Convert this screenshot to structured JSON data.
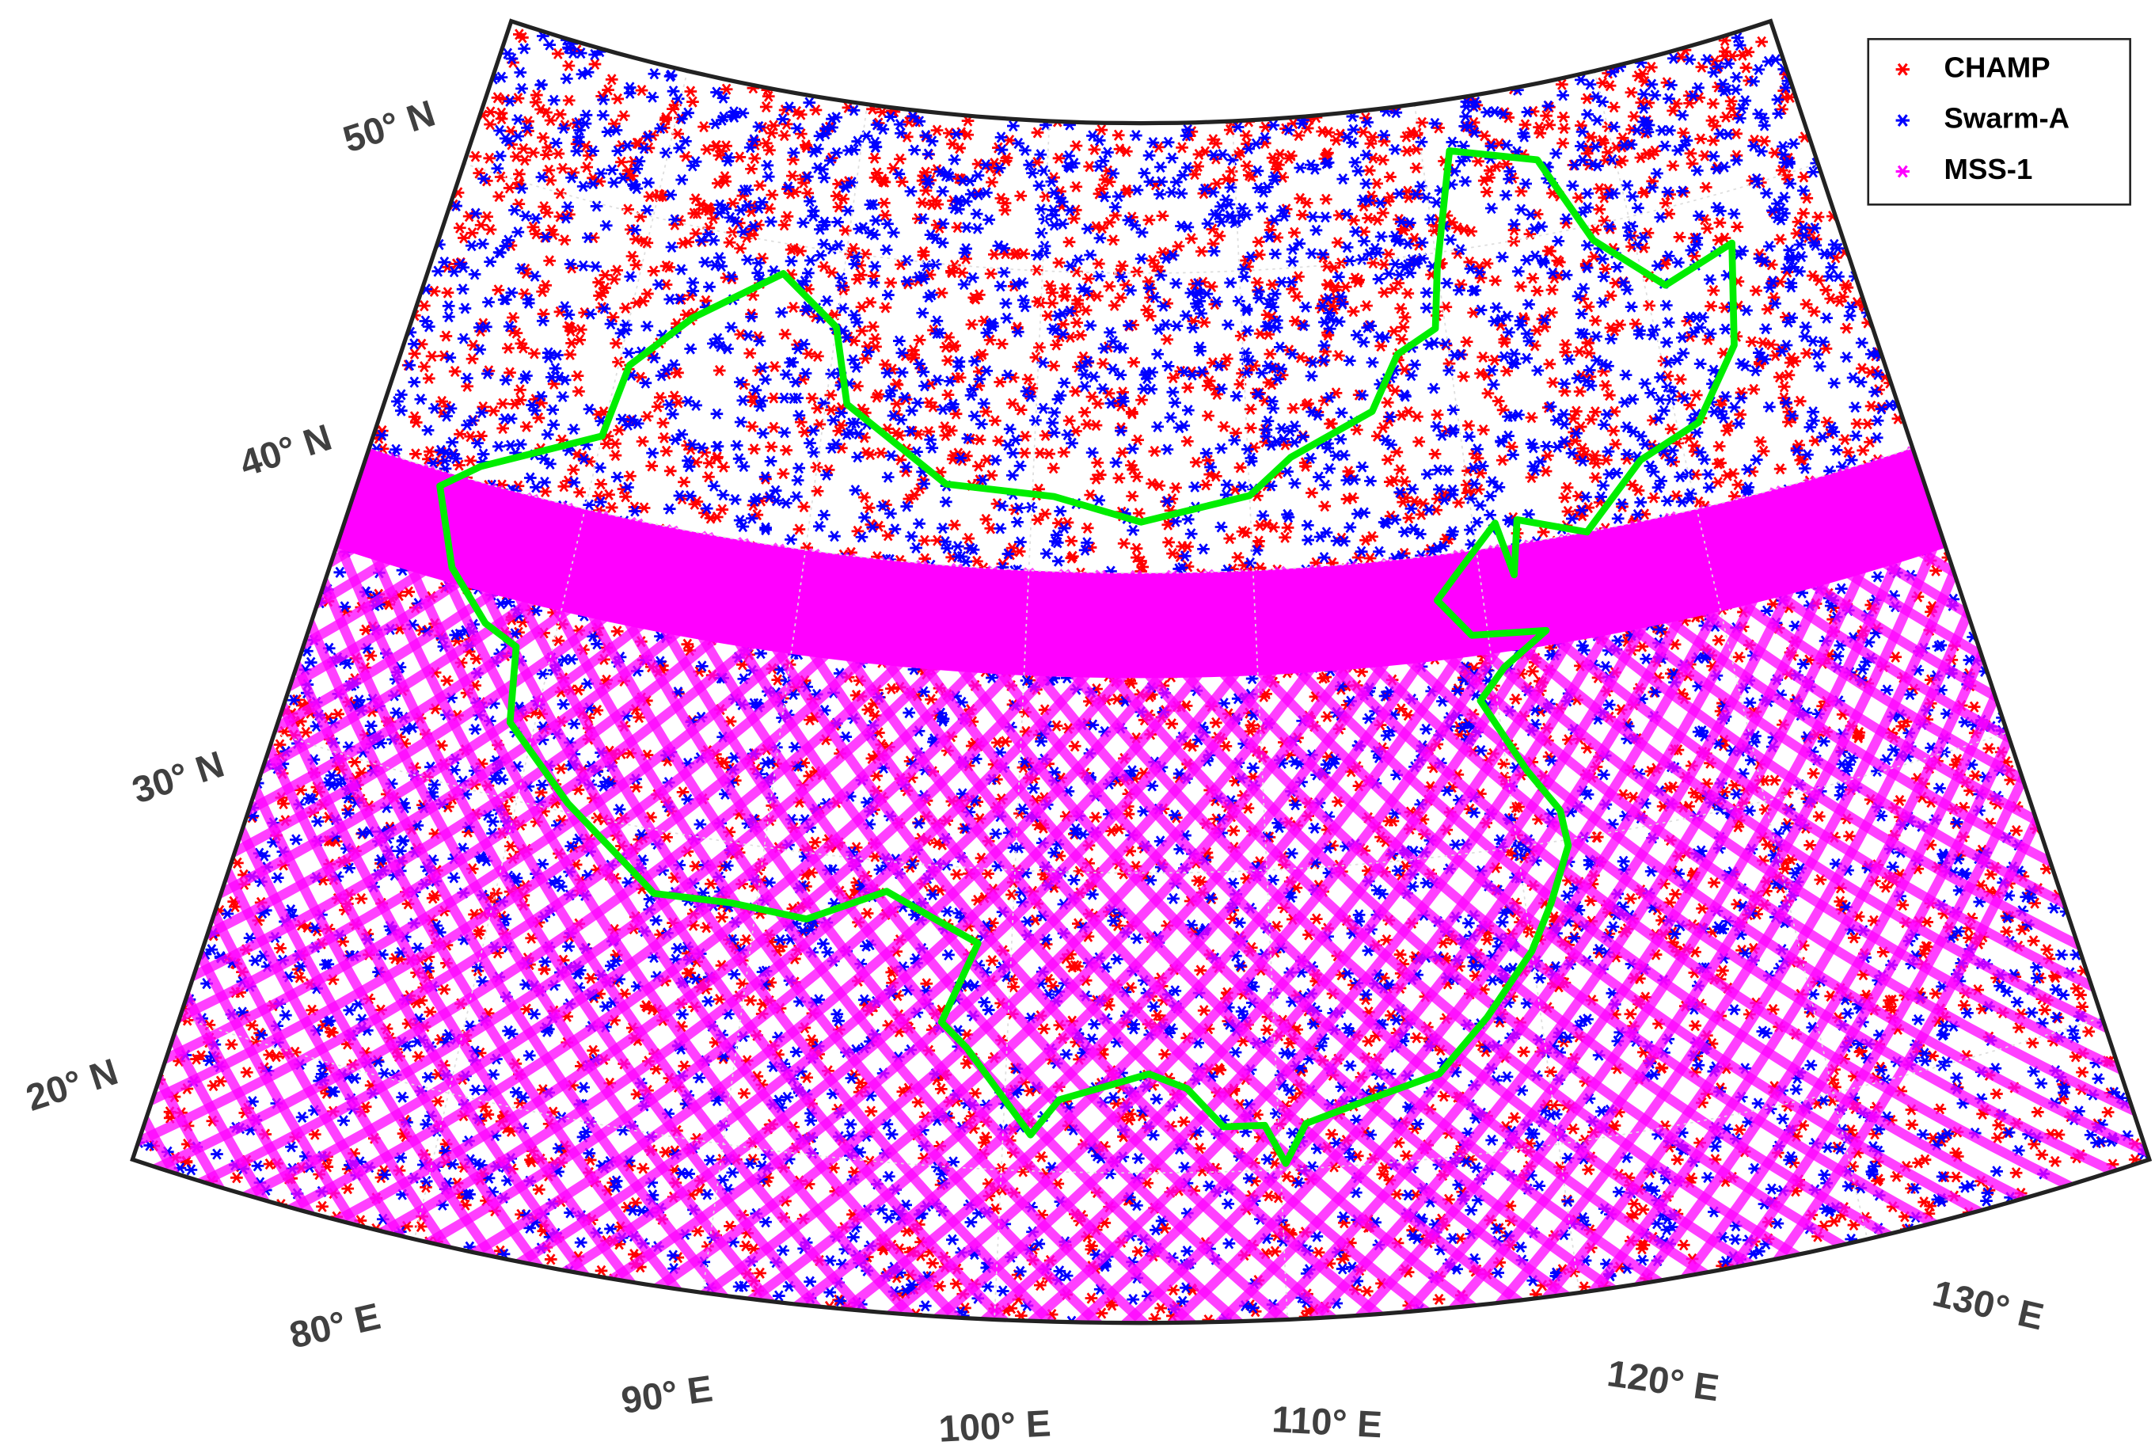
{
  "map": {
    "legend": [
      {
        "name": "CHAMP",
        "color": "#ff0000"
      },
      {
        "name": "Swarm-A",
        "color": "#0000ff"
      },
      {
        "name": "MSS-1",
        "color": "#ff00ff"
      }
    ],
    "latitude_labels": [
      "50° N",
      "40° N",
      "30° N",
      "20° N"
    ],
    "longitude_labels": [
      "80° E",
      "90° E",
      "100° E",
      "110° E",
      "120° E",
      "130° E"
    ],
    "border_color": "#00ee00"
  }
}
